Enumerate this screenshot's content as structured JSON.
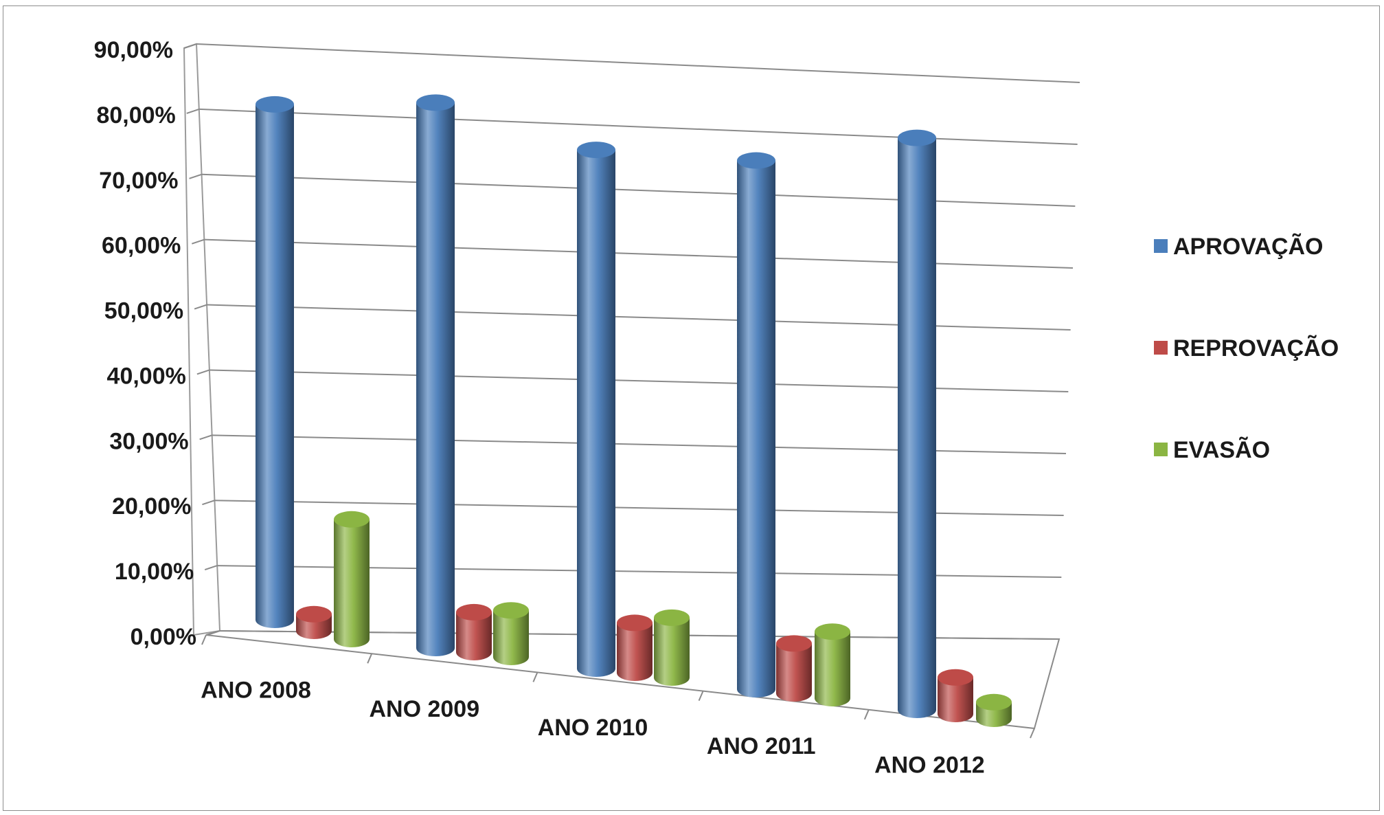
{
  "chart_data": {
    "type": "bar",
    "style": "3d-cylinder",
    "title": "",
    "xlabel": "",
    "ylabel": "",
    "categories": [
      "ANO 2008",
      "ANO 2009",
      "ANO 2010",
      "ANO 2011",
      "ANO 2012"
    ],
    "series": [
      {
        "name": "APROVAÇÃO",
        "color": "#4a7ebb",
        "values": [
          77.5,
          82.0,
          78.0,
          79.5,
          86.0
        ]
      },
      {
        "name": "REPROVAÇÃO",
        "color": "#be4b48",
        "values": [
          2.5,
          6.0,
          7.5,
          7.5,
          5.5
        ]
      },
      {
        "name": "EVASÃO",
        "color": "#8bb543",
        "values": [
          18.0,
          7.0,
          9.0,
          10.0,
          2.5
        ]
      }
    ],
    "y_ticks": [
      "0,00%",
      "10,00%",
      "20,00%",
      "30,00%",
      "40,00%",
      "50,00%",
      "60,00%",
      "70,00%",
      "80,00%",
      "90,00%"
    ],
    "ylim": [
      0,
      90
    ],
    "grid": true,
    "legend_position": "right"
  }
}
